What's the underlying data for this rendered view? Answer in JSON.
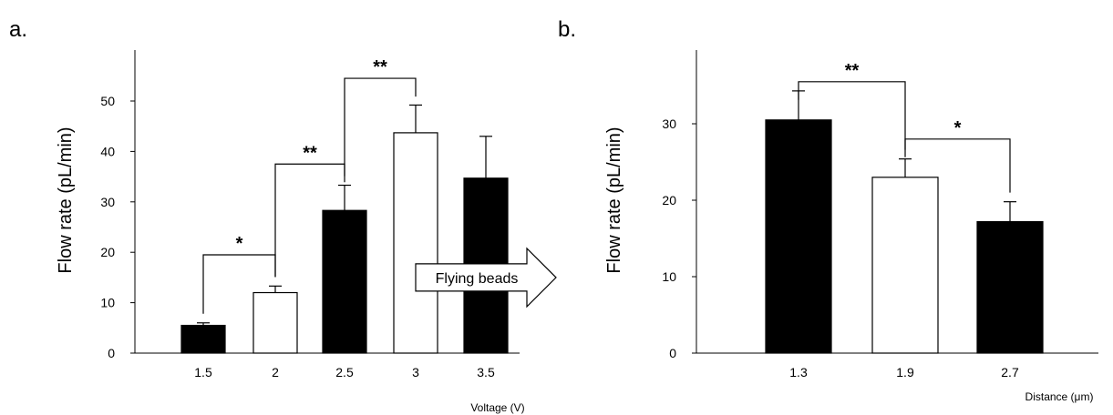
{
  "chart_data": [
    {
      "type": "bar",
      "panel_label": "a.",
      "categories": [
        "1.5",
        "2",
        "2.5",
        "3",
        "3.5"
      ],
      "values": [
        5.5,
        12,
        28.3,
        43.7,
        34.7
      ],
      "errors": [
        0.5,
        1.3,
        5.0,
        5.5,
        8.3
      ],
      "fills": [
        "#000000",
        "#ffffff",
        "#000000",
        "#ffffff",
        "#000000"
      ],
      "xlabel": "Voltage (V)",
      "ylabel": "Flow rate (pL/min)",
      "ylim": [
        0,
        60
      ],
      "yticks": [
        "0",
        "10",
        "20",
        "30",
        "40",
        "50"
      ],
      "grid": false,
      "significance": [
        {
          "from": 0,
          "to": 1,
          "label": "*",
          "level": 19.5
        },
        {
          "from": 1,
          "to": 2,
          "label": "**",
          "level": 37.5
        },
        {
          "from": 2,
          "to": 3,
          "label": "**",
          "level": 54.5
        }
      ],
      "annotation": {
        "text": "Flying beads",
        "at_value": 15
      }
    },
    {
      "type": "bar",
      "panel_label": "b.",
      "categories": [
        "1.3",
        "1.9",
        "2.7"
      ],
      "values": [
        30.5,
        23,
        17.2
      ],
      "errors": [
        3.8,
        2.4,
        2.6
      ],
      "fills": [
        "#000000",
        "#ffffff",
        "#000000"
      ],
      "xlabel": "Distance (μm)",
      "ylabel": "Flow rate (pL/min)",
      "ylim": [
        0,
        40
      ],
      "yticks": [
        "0",
        "10",
        "20",
        "30"
      ],
      "grid": false,
      "significance": [
        {
          "from": 0,
          "to": 1,
          "label": "**",
          "level": 35.5
        },
        {
          "from": 1,
          "to": 2,
          "label": "*",
          "level": 28
        }
      ]
    }
  ]
}
